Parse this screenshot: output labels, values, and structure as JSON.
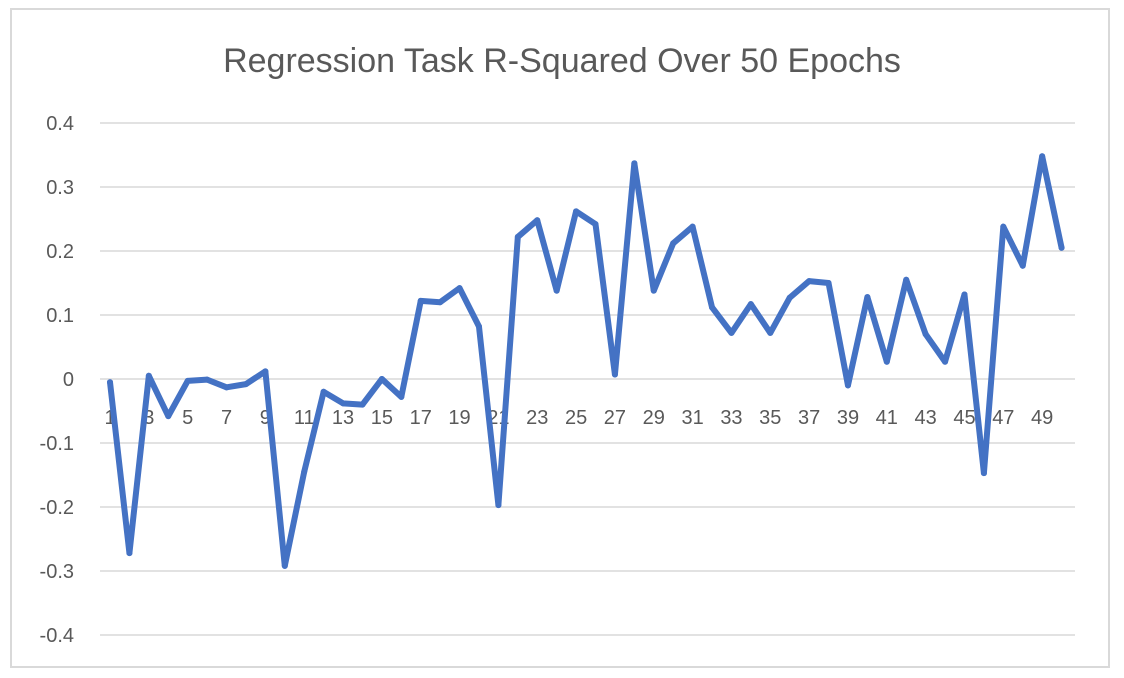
{
  "chart_data": {
    "type": "line",
    "title": "Regression Task R-Squared Over 50 Epochs",
    "xlabel": "",
    "ylabel": "",
    "ylim": [
      -0.4,
      0.4
    ],
    "yticks": [
      "0.4",
      "0.3",
      "0.2",
      "0.1",
      "0",
      "-0.1",
      "-0.2",
      "-0.3",
      "-0.4"
    ],
    "ytick_values": [
      0.4,
      0.3,
      0.2,
      0.1,
      0,
      -0.1,
      -0.2,
      -0.3,
      -0.4
    ],
    "x": [
      1,
      2,
      3,
      4,
      5,
      6,
      7,
      8,
      9,
      10,
      11,
      12,
      13,
      14,
      15,
      16,
      17,
      18,
      19,
      20,
      21,
      22,
      23,
      24,
      25,
      26,
      27,
      28,
      29,
      30,
      31,
      32,
      33,
      34,
      35,
      36,
      37,
      38,
      39,
      40,
      41,
      42,
      43,
      44,
      45,
      46,
      47,
      48,
      49,
      50
    ],
    "xtick_labels": [
      "1",
      "3",
      "5",
      "7",
      "9",
      "11",
      "13",
      "15",
      "17",
      "19",
      "21",
      "23",
      "25",
      "27",
      "29",
      "31",
      "33",
      "35",
      "37",
      "39",
      "41",
      "43",
      "45",
      "47",
      "49"
    ],
    "grid": true,
    "series": [
      {
        "color": "#4472c4",
        "values": [
          -0.005,
          -0.272,
          0.005,
          -0.058,
          -0.003,
          -0.001,
          -0.013,
          -0.008,
          0.012,
          -0.292,
          -0.145,
          -0.02,
          -0.038,
          -0.04,
          0.0,
          -0.028,
          0.122,
          0.12,
          0.142,
          0.082,
          -0.197,
          0.222,
          0.248,
          0.138,
          0.262,
          0.242,
          0.007,
          0.337,
          0.138,
          0.212,
          0.238,
          0.112,
          0.072,
          0.117,
          0.072,
          0.127,
          0.153,
          0.15,
          -0.01,
          0.128,
          0.027,
          0.155,
          0.07,
          0.027,
          0.132,
          -0.147,
          0.238,
          0.177,
          0.348,
          0.205
        ]
      }
    ]
  }
}
